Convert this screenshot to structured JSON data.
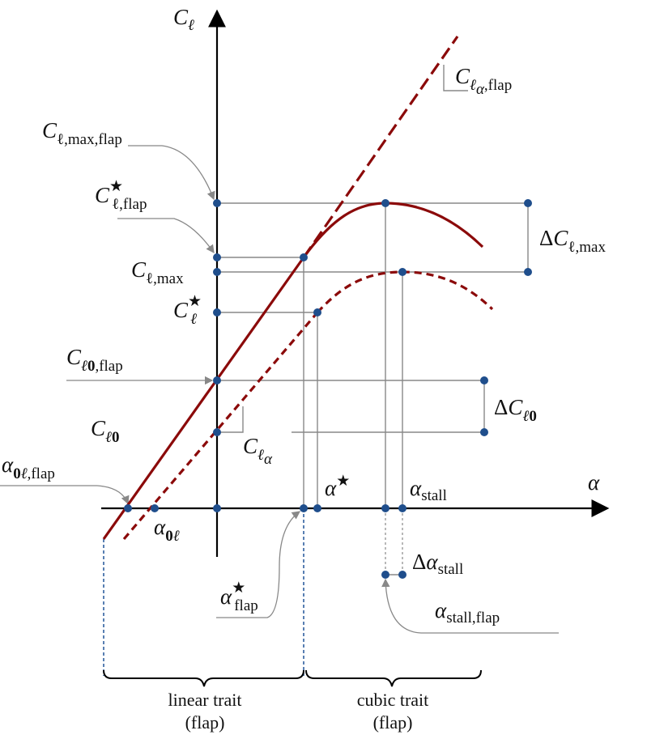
{
  "axes": {
    "y_axis": {
      "symbol": "C",
      "sub": "ℓ"
    },
    "x_axis": {
      "symbol": "α"
    }
  },
  "labels": {
    "cl_alpha_flap": {
      "main": "C",
      "sub1": "ℓ",
      "sub2": "α",
      "sub3": ",flap"
    },
    "cl_max_flap": {
      "main": "C",
      "sub": "ℓ,max,flap"
    },
    "cl_star_flap": {
      "main": "C",
      "star": "★",
      "sub": "ℓ,flap"
    },
    "cl_max": {
      "main": "C",
      "sub": "ℓ,max"
    },
    "cl_star": {
      "main": "C",
      "star": "★",
      "sub": "ℓ"
    },
    "cl0_flap": {
      "main": "C",
      "sub1": "ℓ",
      "sub2": "0",
      "sub3": ",flap"
    },
    "cl0": {
      "main": "C",
      "sub1": "ℓ",
      "sub2": "0"
    },
    "cl_alpha": {
      "main": "C",
      "sub1": "ℓ",
      "sub2": "α"
    },
    "delta_cl_max": {
      "delta": "Δ",
      "main": "C",
      "sub": "ℓ,max"
    },
    "delta_cl0": {
      "delta": "Δ",
      "main": "C",
      "sub1": "ℓ",
      "sub2": "0"
    },
    "alpha0l_flap": {
      "main": "α",
      "sub1": "0",
      "sub2": "ℓ",
      "sub3": ",flap"
    },
    "alpha0l": {
      "main": "α",
      "sub1": "0",
      "sub2": "ℓ"
    },
    "alpha_star": {
      "main": "α",
      "star": "★"
    },
    "alpha_stall": {
      "main": "α",
      "sub": "stall"
    },
    "alpha_star_flap": {
      "main": "α",
      "star": "★",
      "sub": "flap"
    },
    "delta_alpha_stall": {
      "delta": "Δ",
      "main": "α",
      "sub": "stall"
    },
    "alpha_stall_flap": {
      "main": "α",
      "sub": "stall,flap"
    }
  },
  "captions": {
    "linear": {
      "line1": "linear trait",
      "line2": "(flap)"
    },
    "cubic": {
      "line1": "cubic trait",
      "line2": "(flap)"
    }
  },
  "colors": {
    "curve": "#8b0a0a",
    "axis": "#000000",
    "guide": "#888888",
    "point": "#1f4e8c",
    "dashed_vertical": "#2f5f9f"
  }
}
